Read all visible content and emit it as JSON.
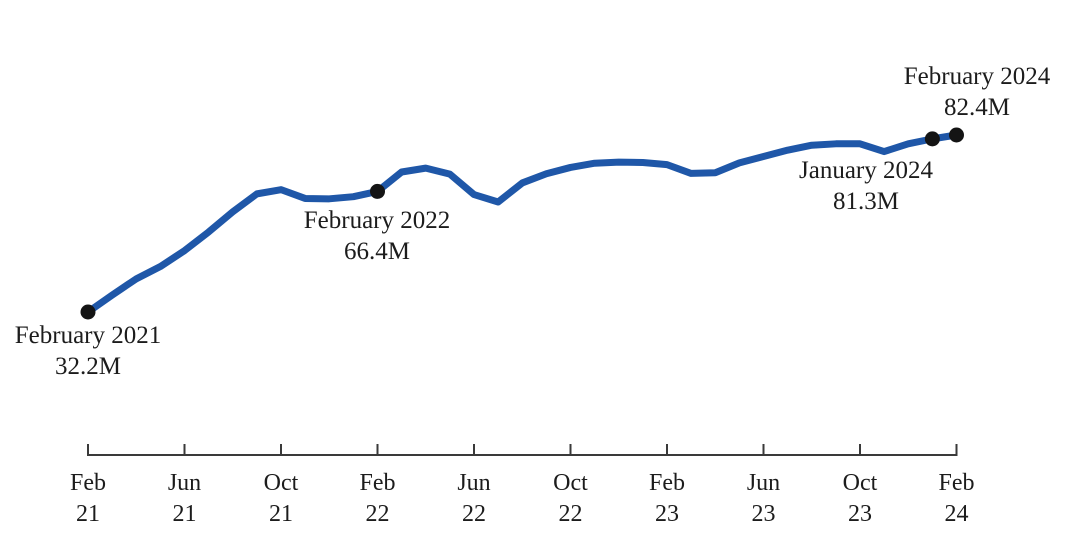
{
  "chart_data": {
    "type": "line",
    "title": "",
    "xlabel": "",
    "ylabel": "",
    "unit": "M",
    "grid": false,
    "legend": "none",
    "x_axis": {
      "start_label": "Feb 2021",
      "end_label": "Feb 2024",
      "tick_interval_months": 4
    },
    "categories": [
      "Feb 2021",
      "Mar 2021",
      "Apr 2021",
      "May 2021",
      "Jun 2021",
      "Jul 2021",
      "Aug 2021",
      "Sep 2021",
      "Oct 2021",
      "Nov 2021",
      "Dec 2021",
      "Jan 2022",
      "Feb 2022",
      "Mar 2022",
      "Apr 2022",
      "May 2022",
      "Jun 2022",
      "Jul 2022",
      "Aug 2022",
      "Sep 2022",
      "Oct 2022",
      "Nov 2022",
      "Dec 2022",
      "Jan 2023",
      "Feb 2023",
      "Mar 2023",
      "Apr 2023",
      "May 2023",
      "Jun 2023",
      "Jul 2023",
      "Aug 2023",
      "Sep 2023",
      "Oct 2023",
      "Nov 2023",
      "Dec 2023",
      "Jan 2024",
      "Feb 2024"
    ],
    "values": [
      32.2,
      37.0,
      41.6,
      45.1,
      49.6,
      54.9,
      60.6,
      65.7,
      66.9,
      64.4,
      64.3,
      64.9,
      66.4,
      71.9,
      73.0,
      71.3,
      65.5,
      63.4,
      68.8,
      71.4,
      73.2,
      74.4,
      74.7,
      74.6,
      74.0,
      71.5,
      71.7,
      74.5,
      76.3,
      78.1,
      79.5,
      79.9,
      79.9,
      77.7,
      79.9,
      81.3,
      82.4
    ],
    "x_tick_labels": [
      {
        "month": "Feb",
        "year": "21"
      },
      {
        "month": "Jun",
        "year": "21"
      },
      {
        "month": "Oct",
        "year": "21"
      },
      {
        "month": "Feb",
        "year": "22"
      },
      {
        "month": "Jun",
        "year": "22"
      },
      {
        "month": "Oct",
        "year": "22"
      },
      {
        "month": "Feb",
        "year": "23"
      },
      {
        "month": "Jun",
        "year": "23"
      },
      {
        "month": "Oct",
        "year": "23"
      },
      {
        "month": "Feb",
        "year": "24"
      }
    ],
    "annotations": [
      {
        "index": 0,
        "title": "February 2021",
        "value_label": "32.2M"
      },
      {
        "index": 12,
        "title": "February 2022",
        "value_label": "66.4M"
      },
      {
        "index": 35,
        "title": "January 2024",
        "value_label": "81.3M"
      },
      {
        "index": 36,
        "title": "February 2024",
        "value_label": "82.4M"
      }
    ],
    "colors": {
      "line": "#1f57a8",
      "marker": "#141414",
      "axis": "#3a3a3a",
      "text": "#1c1c1c"
    }
  }
}
